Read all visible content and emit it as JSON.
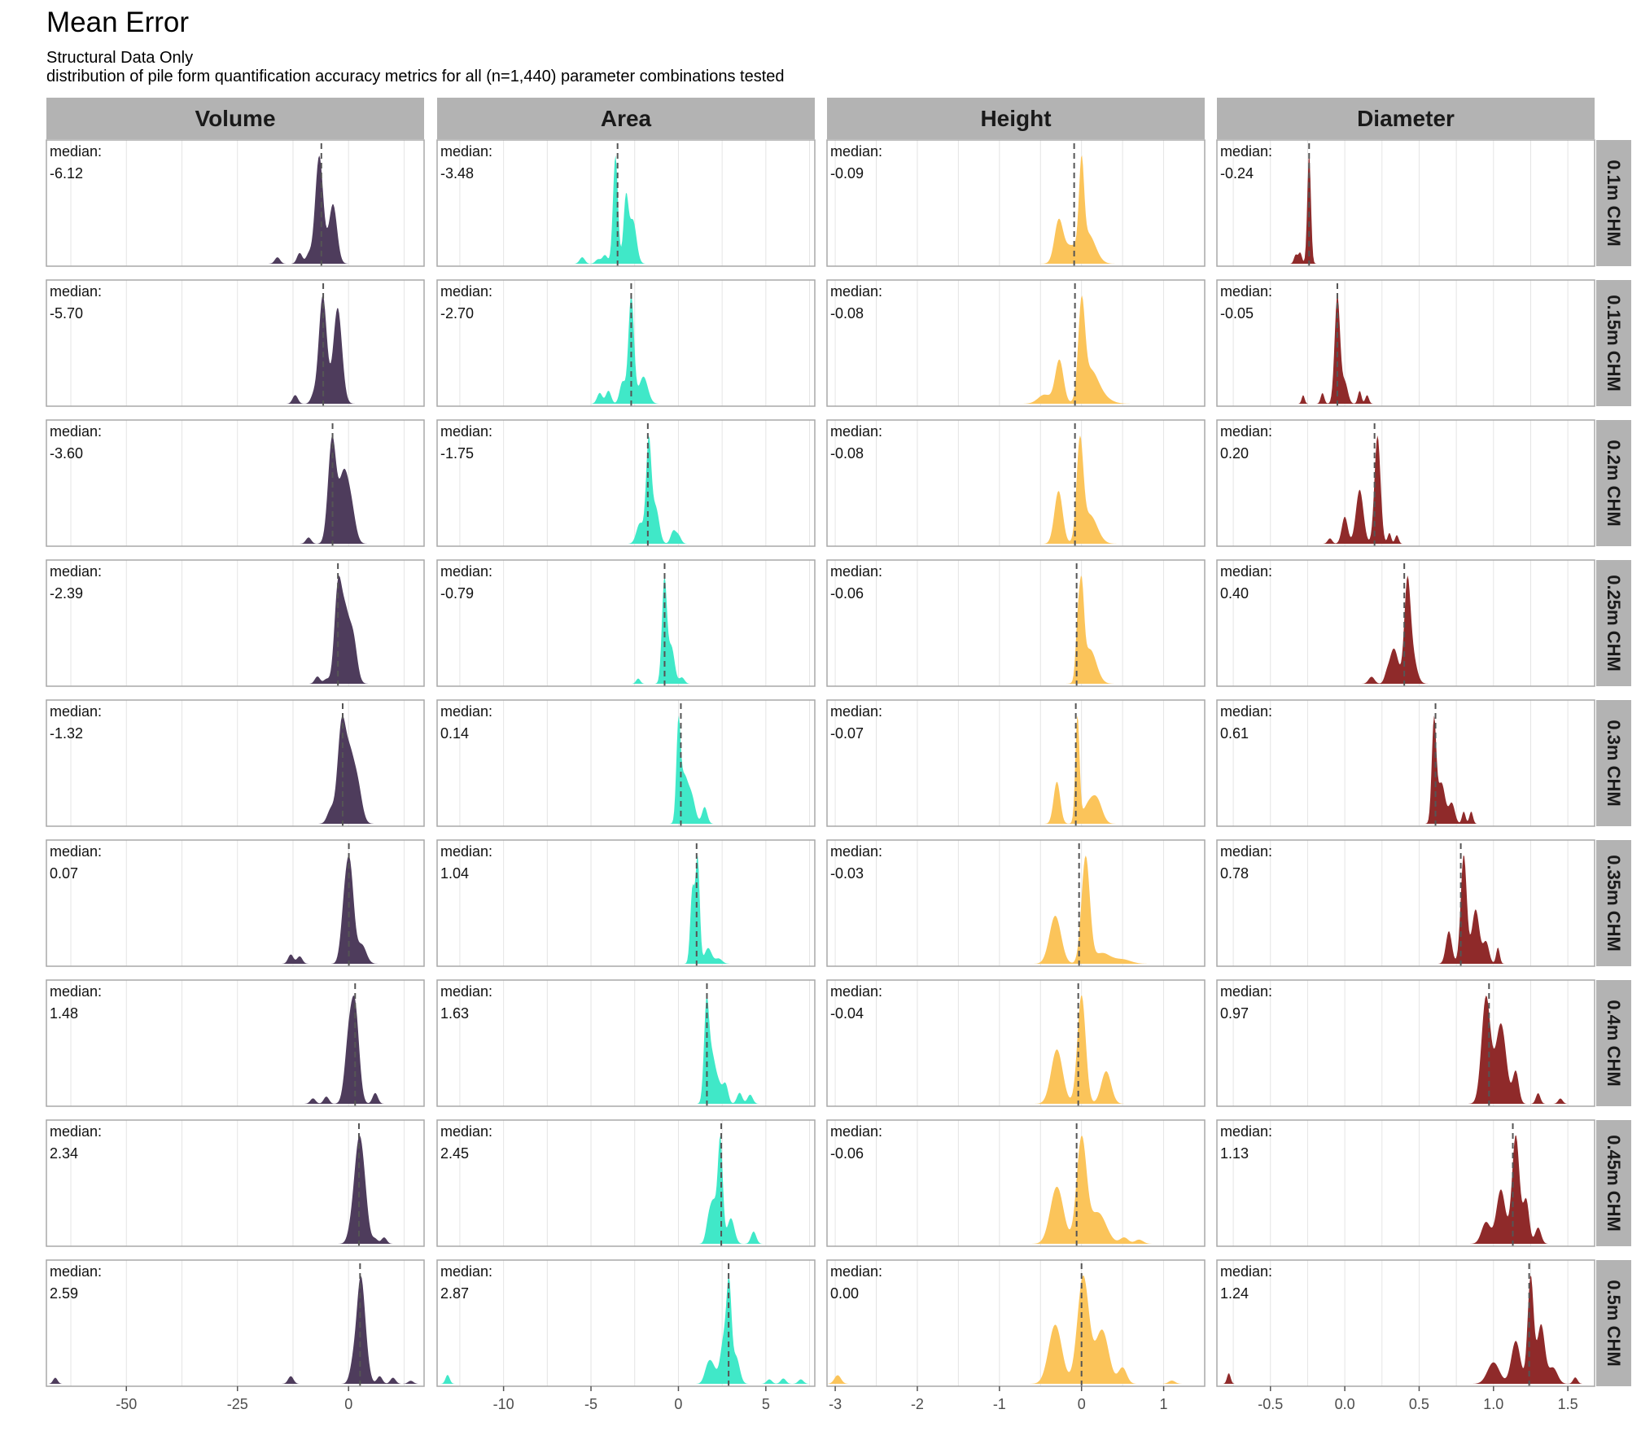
{
  "title": "Mean Error",
  "subtitle": "Structural Data Only",
  "subtitle2": "distribution of pile form quantification accuracy metrics for all (n=1,440) parameter combinations tested",
  "median_label": "median:",
  "colors": {
    "Volume": "#4e3c5c",
    "Area": "#40e8c8",
    "Height": "#fbc45a",
    "Diameter": "#8f2a2a",
    "strip_bg": "#b3b3b3",
    "panel_border": "#a8a8a8",
    "grid": "#e4e4e4"
  },
  "chart_data": {
    "type": "area",
    "columns": [
      {
        "name": "Volume",
        "xlim": [
          -68,
          17
        ],
        "ticks": [
          -50,
          -25,
          0
        ],
        "tick_labels": [
          "-50",
          "-25",
          "0"
        ],
        "gridlines": [
          -62.5,
          -50,
          -37.5,
          -25,
          -12.5,
          0,
          12.5
        ]
      },
      {
        "name": "Area",
        "xlim": [
          -13.8,
          7.8
        ],
        "ticks": [
          -10,
          -5,
          0,
          5
        ],
        "tick_labels": [
          "-10",
          "-5",
          "0",
          "5"
        ],
        "gridlines": [
          -12.5,
          -10,
          -7.5,
          -5,
          -2.5,
          0,
          2.5,
          5,
          7.5
        ]
      },
      {
        "name": "Height",
        "xlim": [
          -3.1,
          1.5
        ],
        "ticks": [
          -3,
          -2,
          -1,
          0,
          1
        ],
        "tick_labels": [
          "-3",
          "-2",
          "-1",
          "0",
          "1"
        ],
        "gridlines": [
          -3,
          -2.5,
          -2,
          -1.5,
          -1,
          -0.5,
          0,
          0.5,
          1
        ]
      },
      {
        "name": "Diameter",
        "xlim": [
          -0.86,
          1.68
        ],
        "ticks": [
          -0.5,
          0.0,
          0.5,
          1.0,
          1.5
        ],
        "tick_labels": [
          "-0.5",
          "0.0",
          "0.5",
          "1.0",
          "1.5"
        ],
        "gridlines": [
          -0.75,
          -0.5,
          -0.25,
          0,
          0.25,
          0.5,
          0.75,
          1,
          1.25,
          1.5
        ]
      }
    ],
    "rows": [
      "0.1m CHM",
      "0.15m CHM",
      "0.2m CHM",
      "0.25m CHM",
      "0.3m CHM",
      "0.35m CHM",
      "0.4m CHM",
      "0.45m CHM",
      "0.5m CHM"
    ],
    "medians": [
      [
        "-6.12",
        "-3.48",
        "-0.09",
        "-0.24"
      ],
      [
        "-5.70",
        "-2.70",
        "-0.08",
        "-0.05"
      ],
      [
        "-3.60",
        "-1.75",
        "-0.08",
        "0.20"
      ],
      [
        "-2.39",
        "-0.79",
        "-0.06",
        "0.40"
      ],
      [
        "-1.32",
        "0.14",
        "-0.07",
        "0.61"
      ],
      [
        "0.07",
        "1.04",
        "-0.03",
        "0.78"
      ],
      [
        "1.48",
        "1.63",
        "-0.04",
        "0.97"
      ],
      [
        "2.34",
        "2.45",
        "-0.06",
        "1.13"
      ],
      [
        "2.59",
        "2.87",
        "0.00",
        "1.24"
      ]
    ],
    "densities": [
      [
        [
          [
            -6.6,
            1.0,
            0.9
          ],
          [
            -3.5,
            0.55,
            0.9
          ],
          [
            -16,
            0.06,
            0.6
          ],
          [
            -11,
            0.1,
            0.6
          ],
          [
            -9,
            0.08,
            0.6
          ]
        ],
        [
          [
            -3.6,
            1.0,
            0.14
          ],
          [
            -3.0,
            0.6,
            0.14
          ],
          [
            -2.6,
            0.4,
            0.2
          ],
          [
            -5.5,
            0.06,
            0.15
          ],
          [
            -4.2,
            0.08,
            0.15
          ],
          [
            -4.6,
            0.04,
            0.15
          ]
        ],
        [
          [
            -0.28,
            0.45,
            0.05
          ],
          [
            0.0,
            1.0,
            0.03
          ],
          [
            0.08,
            0.35,
            0.09
          ],
          [
            -0.15,
            0.2,
            0.1
          ]
        ],
        [
          [
            -0.24,
            1.0,
            0.012
          ],
          [
            -0.3,
            0.1,
            0.012
          ],
          [
            -0.33,
            0.08,
            0.012
          ]
        ]
      ],
      [
        [
          [
            -5.8,
            1.0,
            0.9
          ],
          [
            -2.7,
            0.6,
            0.9
          ],
          [
            -2,
            0.35,
            0.9
          ],
          [
            -12,
            0.08,
            0.6
          ],
          [
            -8,
            0.06,
            0.6
          ]
        ],
        [
          [
            -2.7,
            1.0,
            0.16
          ],
          [
            -2.0,
            0.25,
            0.25
          ],
          [
            -3.2,
            0.2,
            0.16
          ],
          [
            -4.5,
            0.1,
            0.15
          ],
          [
            -4.0,
            0.12,
            0.15
          ]
        ],
        [
          [
            -0.27,
            0.48,
            0.05
          ],
          [
            0.0,
            1.0,
            0.04
          ],
          [
            0.1,
            0.3,
            0.09
          ],
          [
            -0.45,
            0.1,
            0.08
          ],
          [
            0.2,
            0.1,
            0.12
          ]
        ],
        [
          [
            -0.05,
            1.0,
            0.018
          ],
          [
            0.0,
            0.2,
            0.02
          ],
          [
            -0.15,
            0.1,
            0.012
          ],
          [
            -0.28,
            0.08,
            0.01
          ],
          [
            0.1,
            0.12,
            0.012
          ],
          [
            0.15,
            0.08,
            0.012
          ]
        ]
      ],
      [
        [
          [
            -3.7,
            1.0,
            0.9
          ],
          [
            -1.2,
            0.6,
            1.0
          ],
          [
            0.5,
            0.35,
            1.0
          ],
          [
            -9,
            0.06,
            0.6
          ]
        ],
        [
          [
            -1.7,
            1.0,
            0.15
          ],
          [
            -1.3,
            0.35,
            0.2
          ],
          [
            -2.2,
            0.2,
            0.2
          ],
          [
            -0.3,
            0.12,
            0.15
          ],
          [
            0.0,
            0.08,
            0.15
          ]
        ],
        [
          [
            -0.28,
            0.55,
            0.05
          ],
          [
            -0.02,
            1.0,
            0.04
          ],
          [
            0.1,
            0.3,
            0.09
          ]
        ],
        [
          [
            0.22,
            1.0,
            0.02
          ],
          [
            0.1,
            0.5,
            0.025
          ],
          [
            0.0,
            0.25,
            0.02
          ],
          [
            -0.1,
            0.05,
            0.015
          ],
          [
            0.3,
            0.1,
            0.012
          ],
          [
            0.35,
            0.08,
            0.012
          ]
        ]
      ],
      [
        [
          [
            -2.4,
            1.0,
            0.8
          ],
          [
            -0.8,
            0.7,
            0.9
          ],
          [
            1.0,
            0.5,
            0.9
          ],
          [
            -7,
            0.08,
            0.6
          ],
          [
            -5,
            0.05,
            0.6
          ]
        ],
        [
          [
            -0.8,
            1.0,
            0.14
          ],
          [
            -0.4,
            0.35,
            0.18
          ],
          [
            0.2,
            0.06,
            0.15
          ],
          [
            -2.3,
            0.05,
            0.12
          ]
        ],
        [
          [
            -0.05,
            0.5,
            0.025
          ],
          [
            0.0,
            1.0,
            0.03
          ],
          [
            0.1,
            0.4,
            0.08
          ]
        ],
        [
          [
            0.42,
            1.0,
            0.02
          ],
          [
            0.33,
            0.4,
            0.03
          ],
          [
            0.45,
            0.35,
            0.03
          ],
          [
            0.18,
            0.08,
            0.02
          ],
          [
            0.28,
            0.06,
            0.015
          ]
        ]
      ],
      [
        [
          [
            -1.6,
            1.0,
            0.9
          ],
          [
            0.2,
            0.65,
            1.0
          ],
          [
            2.0,
            0.4,
            1.0
          ],
          [
            -4,
            0.15,
            0.8
          ]
        ],
        [
          [
            0.0,
            1.0,
            0.12
          ],
          [
            0.3,
            0.45,
            0.2
          ],
          [
            0.8,
            0.2,
            0.2
          ],
          [
            1.5,
            0.18,
            0.15
          ],
          [
            0.6,
            0.15,
            0.2
          ]
        ],
        [
          [
            -0.3,
            0.4,
            0.04
          ],
          [
            -0.05,
            1.0,
            0.025
          ],
          [
            0.1,
            0.2,
            0.08
          ],
          [
            0.2,
            0.15,
            0.06
          ]
        ],
        [
          [
            0.6,
            1.0,
            0.015
          ],
          [
            0.65,
            0.4,
            0.025
          ],
          [
            0.72,
            0.2,
            0.02
          ],
          [
            0.8,
            0.12,
            0.012
          ],
          [
            0.85,
            0.12,
            0.012
          ]
        ]
      ],
      [
        [
          [
            0.3,
            1.0,
            0.9
          ],
          [
            -1,
            0.45,
            0.8
          ],
          [
            3,
            0.2,
            1.0
          ],
          [
            -13,
            0.1,
            0.6
          ],
          [
            -11,
            0.08,
            0.6
          ]
        ],
        [
          [
            0.8,
            0.7,
            0.12
          ],
          [
            1.1,
            1.0,
            0.12
          ],
          [
            1.7,
            0.15,
            0.2
          ],
          [
            2.3,
            0.05,
            0.2
          ]
        ],
        [
          [
            -0.32,
            0.45,
            0.07
          ],
          [
            0.05,
            1.0,
            0.05
          ],
          [
            0.25,
            0.1,
            0.1
          ],
          [
            0.5,
            0.04,
            0.1
          ]
        ],
        [
          [
            0.8,
            1.0,
            0.02
          ],
          [
            0.88,
            0.5,
            0.025
          ],
          [
            0.7,
            0.3,
            0.02
          ],
          [
            0.95,
            0.2,
            0.02
          ],
          [
            1.03,
            0.15,
            0.012
          ]
        ]
      ],
      [
        [
          [
            1.5,
            1.0,
            0.9
          ],
          [
            0.0,
            0.6,
            0.9
          ],
          [
            -8,
            0.06,
            0.6
          ],
          [
            -5,
            0.08,
            0.6
          ],
          [
            0,
            0.05,
            0.6
          ],
          [
            6,
            0.12,
            0.6
          ]
        ],
        [
          [
            1.6,
            1.0,
            0.14
          ],
          [
            1.9,
            0.5,
            0.2
          ],
          [
            2.7,
            0.2,
            0.15
          ],
          [
            3.5,
            0.12,
            0.15
          ],
          [
            4.1,
            0.1,
            0.15
          ],
          [
            2.3,
            0.2,
            0.2
          ]
        ],
        [
          [
            -0.3,
            0.5,
            0.07
          ],
          [
            0.0,
            1.0,
            0.05
          ],
          [
            0.3,
            0.3,
            0.06
          ]
        ],
        [
          [
            0.95,
            1.0,
            0.03
          ],
          [
            1.05,
            0.75,
            0.035
          ],
          [
            1.15,
            0.3,
            0.02
          ],
          [
            1.3,
            0.1,
            0.015
          ],
          [
            1.45,
            0.05,
            0.015
          ]
        ]
      ],
      [
        [
          [
            2.3,
            1.0,
            0.9
          ],
          [
            3.5,
            0.55,
            0.9
          ],
          [
            1.0,
            0.3,
            0.9
          ],
          [
            8,
            0.08,
            0.6
          ],
          [
            6,
            0.06,
            0.6
          ]
        ],
        [
          [
            2.4,
            1.0,
            0.14
          ],
          [
            2.0,
            0.4,
            0.2
          ],
          [
            3.0,
            0.25,
            0.2
          ],
          [
            4.3,
            0.12,
            0.15
          ],
          [
            1.7,
            0.15,
            0.15
          ]
        ],
        [
          [
            -0.3,
            0.55,
            0.08
          ],
          [
            0.0,
            1.0,
            0.06
          ],
          [
            0.2,
            0.3,
            0.1
          ],
          [
            0.52,
            0.06,
            0.05
          ],
          [
            0.7,
            0.04,
            0.05
          ]
        ],
        [
          [
            1.15,
            1.0,
            0.025
          ],
          [
            1.05,
            0.5,
            0.03
          ],
          [
            0.95,
            0.2,
            0.03
          ],
          [
            1.22,
            0.4,
            0.02
          ],
          [
            1.3,
            0.15,
            0.02
          ]
        ]
      ],
      [
        [
          [
            2.6,
            1.0,
            0.8
          ],
          [
            3.5,
            0.55,
            0.9
          ],
          [
            1.2,
            0.3,
            0.8
          ],
          [
            -66,
            0.08,
            0.5
          ],
          [
            -13,
            0.1,
            0.6
          ],
          [
            7,
            0.1,
            0.6
          ],
          [
            10,
            0.08,
            0.6
          ],
          [
            14,
            0.04,
            0.6
          ]
        ],
        [
          [
            2.9,
            1.0,
            0.14
          ],
          [
            2.6,
            0.5,
            0.2
          ],
          [
            3.3,
            0.3,
            0.2
          ],
          [
            1.7,
            0.2,
            0.2
          ],
          [
            2.0,
            0.15,
            0.2
          ],
          [
            5.2,
            0.05,
            0.15
          ],
          [
            6.0,
            0.06,
            0.15
          ],
          [
            7.0,
            0.05,
            0.15
          ],
          [
            -13.2,
            0.1,
            0.12
          ]
        ],
        [
          [
            -0.32,
            0.55,
            0.08
          ],
          [
            0.02,
            1.0,
            0.07
          ],
          [
            0.25,
            0.5,
            0.08
          ],
          [
            0.5,
            0.15,
            0.05
          ],
          [
            1.1,
            0.03,
            0.04
          ],
          [
            -2.97,
            0.08,
            0.04
          ]
        ],
        [
          [
            1.25,
            1.0,
            0.02
          ],
          [
            1.32,
            0.55,
            0.025
          ],
          [
            1.15,
            0.4,
            0.03
          ],
          [
            1.0,
            0.2,
            0.04
          ],
          [
            1.4,
            0.15,
            0.03
          ],
          [
            1.55,
            0.06,
            0.015
          ],
          [
            -0.78,
            0.1,
            0.012
          ]
        ]
      ]
    ],
    "grid": true,
    "legend": "none"
  }
}
